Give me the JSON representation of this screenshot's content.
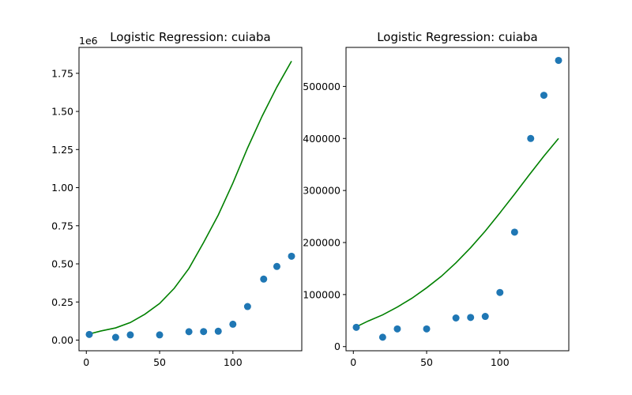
{
  "chart_data": [
    {
      "type": "scatter",
      "title": "Logistic Regression: cuiaba",
      "xlabel": "",
      "ylabel": "",
      "xlim": [
        -5,
        147
      ],
      "ylim": [
        -70000,
        1920000
      ],
      "xticks": [
        0,
        50,
        100
      ],
      "yticks": [
        0,
        250000,
        500000,
        750000,
        1000000,
        1250000,
        1500000,
        1750000
      ],
      "ytick_labels": [
        "0.00",
        "0.25",
        "0.50",
        "0.75",
        "1.00",
        "1.25",
        "1.50",
        "1.75"
      ],
      "y_offset_label": "1e6",
      "grid": false,
      "series": [
        {
          "kind": "points",
          "color": "#1f77b4",
          "x": [
            2,
            20,
            30,
            50,
            70,
            80,
            90,
            100,
            110,
            121,
            130,
            140
          ],
          "y": [
            37000,
            18000,
            34000,
            34000,
            55000,
            56000,
            58000,
            104000,
            220000,
            400000,
            483000,
            550000
          ]
        },
        {
          "kind": "line",
          "color": "#008000",
          "x": [
            2,
            10,
            20,
            30,
            40,
            50,
            60,
            70,
            80,
            90,
            100,
            110,
            120,
            130,
            140
          ],
          "y": [
            40000,
            60000,
            80000,
            115000,
            170000,
            240000,
            340000,
            470000,
            640000,
            820000,
            1030000,
            1260000,
            1470000,
            1660000,
            1830000
          ]
        }
      ]
    },
    {
      "type": "scatter",
      "title": "Logistic Regression: cuiaba",
      "xlabel": "",
      "ylabel": "",
      "xlim": [
        -5,
        147
      ],
      "ylim": [
        -8000,
        575000
      ],
      "xticks": [
        0,
        50,
        100
      ],
      "yticks": [
        0,
        100000,
        200000,
        300000,
        400000,
        500000
      ],
      "ytick_labels": [
        "0",
        "100000",
        "200000",
        "300000",
        "400000",
        "500000"
      ],
      "y_offset_label": "",
      "grid": false,
      "series": [
        {
          "kind": "points",
          "color": "#1f77b4",
          "x": [
            2,
            20,
            30,
            50,
            70,
            80,
            90,
            100,
            110,
            121,
            130,
            140
          ],
          "y": [
            37000,
            18000,
            34000,
            34000,
            55000,
            56000,
            58000,
            104000,
            220000,
            400000,
            483000,
            550000
          ]
        },
        {
          "kind": "line",
          "color": "#008000",
          "x": [
            2,
            10,
            20,
            30,
            40,
            50,
            60,
            70,
            80,
            90,
            100,
            110,
            120,
            130,
            140
          ],
          "y": [
            38000,
            49000,
            61000,
            76000,
            93000,
            113000,
            135000,
            161000,
            190000,
            222000,
            257000,
            293000,
            330000,
            366000,
            400000
          ]
        }
      ]
    }
  ]
}
